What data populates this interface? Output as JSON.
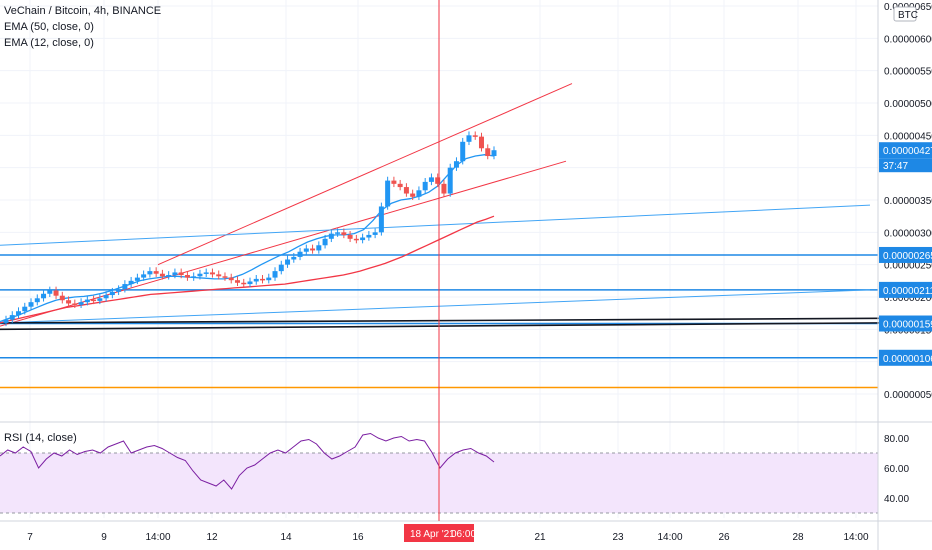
{
  "legend": {
    "title": "VeChain / Bitcoin, 4h, BINANCE",
    "ema50": "EMA (50, close, 0)",
    "ema12": "EMA (12, close, 0)"
  },
  "rsi": {
    "label": "RSI (14, close)"
  },
  "currency_badge": "BTC",
  "colors": {
    "up": "#2196f3",
    "down": "#ef5350",
    "ema50": "#f23645",
    "ema12": "#2196f3",
    "rsi": "#7b1fa2",
    "rsi_band": "#f3e5fc",
    "hline_blue": "#1e88e5",
    "hline_black": "#000000",
    "hline_orange": "#ff9800",
    "crosshair": "#f23645"
  },
  "chart_data": [
    {
      "type": "candlestick",
      "title": "VeChain / Bitcoin, 4h, BINANCE",
      "ylim": [
        0.0,
        6.6e-06
      ],
      "ytick_labels": [
        "0.00000050",
        "0.00000100",
        "0.00000150",
        "0.00000200",
        "0.00000250",
        "0.00000300",
        "0.00000350",
        "0.00000400",
        "0.00000450",
        "0.00000500",
        "0.00000550",
        "0.00000600",
        "0.00000650"
      ],
      "xtick_labels": [
        "7",
        "9",
        "14:00",
        "12",
        "14",
        "16",
        "21",
        "23",
        "14:00",
        "26",
        "28",
        "14:00"
      ],
      "price_tags": [
        {
          "label": "0.00000427",
          "value": 4.27e-06
        },
        {
          "label": "0.00000265",
          "value": 2.65e-06
        },
        {
          "label": "0.00000211",
          "value": 2.11e-06
        },
        {
          "label": "0.00000159",
          "value": 1.59e-06
        },
        {
          "label": "0.00000106",
          "value": 1.06e-06
        }
      ],
      "countdown": "37:47",
      "crosshair_date": "18 Apr '21",
      "crosshair_time": "06:00",
      "horizontal_levels": [
        2.65e-06,
        2.11e-06,
        1.59e-06,
        1.06e-06,
        6e-07
      ],
      "candles_close": [
        1.65e-06,
        1.72e-06,
        1.78e-06,
        1.85e-06,
        1.92e-06,
        1.98e-06,
        2.05e-06,
        2.1e-06,
        2.02e-06,
        1.95e-06,
        1.9e-06,
        1.88e-06,
        1.92e-06,
        1.96e-06,
        1.94e-06,
        1.98e-06,
        2.03e-06,
        2.08e-06,
        2.12e-06,
        2.2e-06,
        2.25e-06,
        2.3e-06,
        2.35e-06,
        2.4e-06,
        2.36e-06,
        2.32e-06,
        2.34e-06,
        2.38e-06,
        2.34e-06,
        2.3e-06,
        2.32e-06,
        2.36e-06,
        2.38e-06,
        2.35e-06,
        2.32e-06,
        2.3e-06,
        2.26e-06,
        2.22e-06,
        2.2e-06,
        2.24e-06,
        2.28e-06,
        2.26e-06,
        2.3e-06,
        2.4e-06,
        2.5e-06,
        2.58e-06,
        2.62e-06,
        2.7e-06,
        2.75e-06,
        2.72e-06,
        2.8e-06,
        2.9e-06,
        2.98e-06,
        3e-06,
        2.96e-06,
        2.9e-06,
        2.88e-06,
        2.92e-06,
        2.96e-06,
        3e-06,
        3.4e-06,
        3.8e-06,
        3.75e-06,
        3.7e-06,
        3.6e-06,
        3.55e-06,
        3.65e-06,
        3.78e-06,
        3.85e-06,
        3.75e-06,
        3.6e-06,
        4e-06,
        4.1e-06,
        4.4e-06,
        4.5e-06,
        4.48e-06,
        4.3e-06,
        4.18e-06,
        4.27e-06
      ],
      "candles_open": [
        1.6e-06,
        1.65e-06,
        1.72e-06,
        1.78e-06,
        1.85e-06,
        1.92e-06,
        1.98e-06,
        2.05e-06,
        2.1e-06,
        2.02e-06,
        1.95e-06,
        1.9e-06,
        1.88e-06,
        1.92e-06,
        1.96e-06,
        1.94e-06,
        1.98e-06,
        2.03e-06,
        2.08e-06,
        2.12e-06,
        2.2e-06,
        2.25e-06,
        2.3e-06,
        2.35e-06,
        2.4e-06,
        2.36e-06,
        2.32e-06,
        2.34e-06,
        2.38e-06,
        2.34e-06,
        2.3e-06,
        2.32e-06,
        2.36e-06,
        2.38e-06,
        2.35e-06,
        2.32e-06,
        2.3e-06,
        2.26e-06,
        2.22e-06,
        2.2e-06,
        2.24e-06,
        2.28e-06,
        2.26e-06,
        2.3e-06,
        2.4e-06,
        2.5e-06,
        2.58e-06,
        2.62e-06,
        2.7e-06,
        2.75e-06,
        2.72e-06,
        2.8e-06,
        2.9e-06,
        2.98e-06,
        3e-06,
        2.96e-06,
        2.9e-06,
        2.88e-06,
        2.92e-06,
        2.96e-06,
        3e-06,
        3.4e-06,
        3.8e-06,
        3.75e-06,
        3.7e-06,
        3.6e-06,
        3.55e-06,
        3.65e-06,
        3.78e-06,
        3.85e-06,
        3.75e-06,
        3.6e-06,
        4e-06,
        4.1e-06,
        4.4e-06,
        4.5e-06,
        4.48e-06,
        4.3e-06,
        4.18e-06
      ],
      "ema50": [
        1.6e-06,
        1.63e-06,
        1.66e-06,
        1.69e-06,
        1.72e-06,
        1.75e-06,
        1.78e-06,
        1.81e-06,
        1.84e-06,
        1.86e-06,
        1.88e-06,
        1.9e-06,
        1.92e-06,
        1.94e-06,
        1.96e-06,
        1.98e-06,
        2e-06,
        2.02e-06,
        2.04e-06,
        2.05e-06,
        2.06e-06,
        2.07e-06,
        2.08e-06,
        2.09e-06,
        2.1e-06,
        2.11e-06,
        2.12e-06,
        2.13e-06,
        2.14e-06,
        2.15e-06,
        2.16e-06,
        2.17e-06,
        2.18e-06,
        2.19e-06,
        2.2e-06,
        2.22e-06,
        2.24e-06,
        2.26e-06,
        2.28e-06,
        2.3e-06,
        2.32e-06,
        2.34e-06,
        2.37e-06,
        2.4e-06,
        2.44e-06,
        2.48e-06,
        2.52e-06,
        2.57e-06,
        2.62e-06,
        2.68e-06,
        2.74e-06,
        2.8e-06,
        2.86e-06,
        2.92e-06,
        2.98e-06,
        3.04e-06,
        3.1e-06,
        3.16e-06,
        3.2e-06,
        3.25e-06
      ],
      "ema12": [
        1.62e-06,
        1.67e-06,
        1.72e-06,
        1.78e-06,
        1.84e-06,
        1.9e-06,
        1.95e-06,
        1.98e-06,
        2e-06,
        2.01e-06,
        2.03e-06,
        2.06e-06,
        2.1e-06,
        2.15e-06,
        2.2e-06,
        2.25e-06,
        2.28e-06,
        2.3e-06,
        2.32e-06,
        2.32e-06,
        2.31e-06,
        2.3e-06,
        2.29e-06,
        2.28e-06,
        2.28e-06,
        2.3e-06,
        2.35e-06,
        2.42e-06,
        2.5e-06,
        2.57e-06,
        2.64e-06,
        2.7e-06,
        2.78e-06,
        2.85e-06,
        2.9e-06,
        2.94e-06,
        2.96e-06,
        2.96e-06,
        2.98e-06,
        3.04e-06,
        3.18e-06,
        3.35e-06,
        3.45e-06,
        3.5e-06,
        3.52e-06,
        3.56e-06,
        3.62e-06,
        3.72e-06,
        3.88e-06,
        4.04e-06,
        4.14e-06,
        4.18e-06,
        4.2e-06,
        4.18e-06
      ],
      "trendlines": [
        {
          "color": "red",
          "from": [
            158,
            2.5e-06
          ],
          "to": [
            572,
            5.3e-06
          ]
        },
        {
          "color": "red",
          "from": [
            0,
            1.55e-06
          ],
          "to": [
            566,
            4.1e-06
          ]
        },
        {
          "color": "blue",
          "from": [
            0,
            2.8e-06
          ],
          "to": [
            870,
            3.42e-06
          ]
        },
        {
          "color": "blue",
          "from": [
            0,
            1.6e-06
          ],
          "to": [
            870,
            2.11e-06
          ]
        },
        {
          "color": "black",
          "from": [
            0,
            1.6e-06
          ],
          "to": [
            880,
            1.67e-06
          ]
        },
        {
          "color": "black",
          "from": [
            0,
            1.5e-06
          ],
          "to": [
            880,
            1.6e-06
          ]
        }
      ]
    },
    {
      "type": "line",
      "title": "RSI (14, close)",
      "ylim": [
        25,
        90
      ],
      "ytick_labels": [
        "80.00",
        "60.00",
        "40.00"
      ],
      "band": [
        30,
        70
      ],
      "values": [
        68,
        72,
        70,
        74,
        71,
        60,
        66,
        70,
        68,
        72,
        69,
        71,
        72,
        70,
        74,
        76,
        78,
        70,
        72,
        74,
        75,
        73,
        70,
        67,
        65,
        58,
        52,
        50,
        48,
        52,
        46,
        55,
        60,
        62,
        66,
        70,
        72,
        70,
        74,
        78,
        79,
        76,
        70,
        66,
        68,
        71,
        74,
        82,
        83,
        80,
        78,
        80,
        81,
        78,
        79,
        78,
        70,
        60,
        66,
        70,
        72,
        73,
        70,
        68,
        64
      ]
    }
  ]
}
